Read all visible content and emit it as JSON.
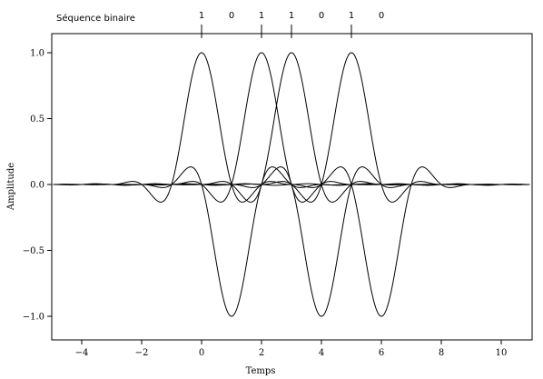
{
  "chart_data": {
    "type": "line",
    "title": "",
    "xlabel": "Temps",
    "ylabel": "Amplitude",
    "xlim": [
      -5,
      11
    ],
    "ylim": [
      -1.15,
      1.2
    ],
    "xticks": [
      -4,
      -2,
      0,
      2,
      4,
      6,
      8,
      10
    ],
    "xtick_labels": [
      "−4",
      "−2",
      "0",
      "2",
      "4",
      "6",
      "8",
      "10"
    ],
    "yticks": [
      1.0,
      0.5,
      0.0,
      -0.5,
      -1.0
    ],
    "ytick_labels": [
      "1.0",
      "0.5",
      "0.0",
      "−0.5",
      "−1.0"
    ],
    "grid": false,
    "sequence_label": "Séquence binaire",
    "sequence_bits": [
      {
        "t": 0,
        "label": "1",
        "bit": 1
      },
      {
        "t": 1,
        "label": "0",
        "bit": 0
      },
      {
        "t": 2,
        "label": "1",
        "bit": 1
      },
      {
        "t": 3,
        "label": "1",
        "bit": 1
      },
      {
        "t": 4,
        "label": "0",
        "bit": 0
      },
      {
        "t": 5,
        "label": "1",
        "bit": 1
      },
      {
        "t": 6,
        "label": "0",
        "bit": 0
      }
    ],
    "pulse_model": "raised-cosine",
    "rolloff": 0.5,
    "line_color": "#000000"
  }
}
